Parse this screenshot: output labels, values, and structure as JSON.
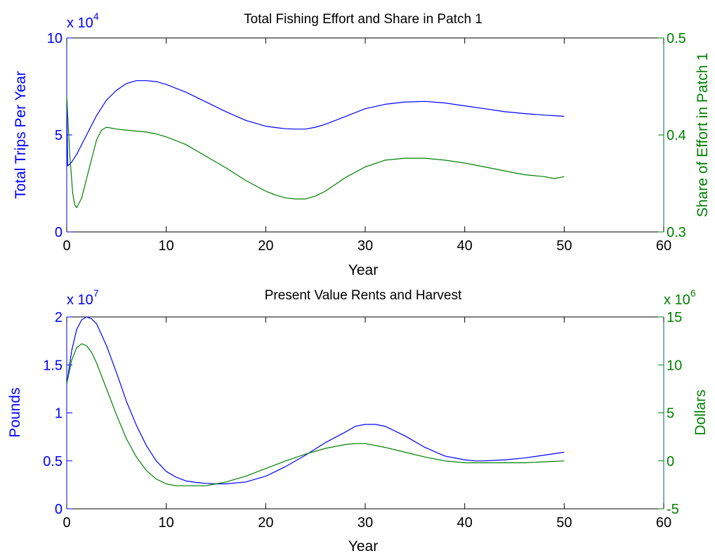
{
  "chart_data": [
    {
      "type": "line",
      "title": "Total Fishing Effort and Share in Patch 1",
      "xlabel": "Year",
      "ylabel_left": "Total Trips Per Year",
      "ylabel_right": "Share of Effort in Patch 1",
      "left_axis_multiplier": {
        "base": "x 10",
        "power": "4"
      },
      "xlim": [
        0,
        60
      ],
      "ylim_left": [
        0,
        100000
      ],
      "ylim_right": [
        0.3,
        0.5
      ],
      "x_ticks": [
        "0",
        "10",
        "20",
        "30",
        "40",
        "50",
        "60"
      ],
      "y_ticks_left": [
        "0",
        "5",
        "10"
      ],
      "y_ticks_right": [
        "0.3",
        "0.4",
        "0.5"
      ],
      "colors": {
        "left": "#0000FF",
        "right": "#008000"
      },
      "series": [
        {
          "axis": "left",
          "x": [
            0,
            0.1,
            0.5,
            1,
            2,
            3,
            4,
            5,
            6,
            7,
            8,
            9,
            10,
            12,
            14,
            16,
            18,
            20,
            21,
            22,
            23,
            24,
            25,
            26,
            28,
            30,
            32,
            34,
            36,
            38,
            40,
            42,
            44,
            46,
            48,
            50
          ],
          "y": [
            66000,
            34000,
            36000,
            40000,
            50000,
            60000,
            68000,
            73000,
            76500,
            78000,
            78000,
            77500,
            76000,
            72000,
            67000,
            62000,
            57500,
            54500,
            53800,
            53200,
            53000,
            53000,
            54000,
            55500,
            59500,
            63500,
            65800,
            67000,
            67300,
            66500,
            65000,
            63500,
            62000,
            61000,
            60200,
            59600
          ]
        },
        {
          "axis": "right",
          "x": [
            0,
            0.3,
            0.6,
            0.8,
            1,
            1.5,
            2,
            2.5,
            3,
            3.5,
            4,
            5,
            6,
            7,
            8,
            9,
            10,
            12,
            14,
            16,
            18,
            20,
            21,
            22,
            23,
            24,
            25,
            26,
            27,
            28,
            30,
            32,
            34,
            36,
            38,
            40,
            42,
            44,
            46,
            48,
            49,
            50
          ],
          "y": [
            0.44,
            0.38,
            0.34,
            0.328,
            0.325,
            0.335,
            0.355,
            0.375,
            0.395,
            0.405,
            0.408,
            0.406,
            0.405,
            0.404,
            0.403,
            0.401,
            0.398,
            0.39,
            0.378,
            0.366,
            0.353,
            0.342,
            0.338,
            0.335,
            0.334,
            0.334,
            0.337,
            0.342,
            0.349,
            0.356,
            0.367,
            0.374,
            0.376,
            0.376,
            0.374,
            0.371,
            0.367,
            0.363,
            0.359,
            0.357,
            0.355,
            0.357
          ]
        }
      ]
    },
    {
      "type": "line",
      "title": "Present Value Rents and Harvest",
      "xlabel": "Year",
      "ylabel_left": "Pounds",
      "ylabel_right": "Dollars",
      "left_axis_multiplier": {
        "base": "x 10",
        "power": "7"
      },
      "right_axis_multiplier": {
        "base": "x 10",
        "power": "6"
      },
      "xlim": [
        0,
        60
      ],
      "ylim_left": [
        0,
        20000000
      ],
      "ylim_right": [
        -5000000,
        15000000
      ],
      "x_ticks": [
        "0",
        "10",
        "20",
        "30",
        "40",
        "50",
        "60"
      ],
      "y_ticks_left": [
        "0",
        "0.5",
        "1",
        "1.5",
        "2"
      ],
      "y_ticks_right": [
        "-5",
        "0",
        "5",
        "10",
        "15"
      ],
      "colors": {
        "left": "#0000FF",
        "right": "#008000"
      },
      "series": [
        {
          "axis": "left",
          "x": [
            0,
            0.5,
            1,
            1.5,
            2,
            2.5,
            3,
            4,
            5,
            6,
            7,
            8,
            9,
            10,
            11,
            12,
            13,
            14,
            15,
            16,
            18,
            20,
            22,
            24,
            26,
            28,
            29,
            30,
            31,
            32,
            34,
            36,
            38,
            40,
            41,
            42,
            44,
            46,
            48,
            50
          ],
          "y": [
            13000000,
            16500000,
            18700000,
            19700000,
            20000000,
            19800000,
            19300000,
            17000000,
            14200000,
            11200000,
            8700000,
            6600000,
            5000000,
            3900000,
            3300000,
            2900000,
            2750000,
            2650000,
            2600000,
            2600000,
            2800000,
            3400000,
            4400000,
            5600000,
            6900000,
            8000000,
            8600000,
            8800000,
            8800000,
            8600000,
            7600000,
            6400000,
            5500000,
            5100000,
            5000000,
            5000000,
            5100000,
            5300000,
            5600000,
            5900000
          ]
        },
        {
          "axis": "right",
          "x": [
            0,
            0.5,
            1,
            1.5,
            2,
            2.5,
            3,
            4,
            5,
            6,
            7,
            8,
            9,
            10,
            11,
            12,
            13,
            14,
            15,
            16,
            18,
            20,
            22,
            24,
            26,
            28,
            29,
            30,
            31,
            32,
            34,
            36,
            38,
            40,
            42,
            44,
            46,
            48,
            50
          ],
          "y": [
            8000000,
            10500000,
            11800000,
            12200000,
            12000000,
            11300000,
            10200000,
            7500000,
            4800000,
            2300000,
            400000,
            -1000000,
            -1900000,
            -2400000,
            -2600000,
            -2600000,
            -2600000,
            -2600000,
            -2400000,
            -2200000,
            -1600000,
            -800000,
            0,
            700000,
            1300000,
            1700000,
            1800000,
            1800000,
            1600000,
            1400000,
            900000,
            400000,
            0,
            -200000,
            -200000,
            -200000,
            -200000,
            -100000,
            0
          ]
        }
      ]
    }
  ]
}
